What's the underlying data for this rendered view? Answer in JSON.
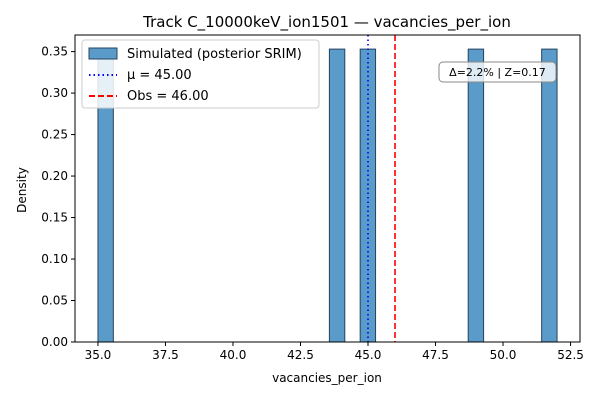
{
  "chart_data": {
    "type": "bar",
    "title": "Track C_10000keV_ion1501 — vacancies_per_ion",
    "xlabel": "vacancies_per_ion",
    "ylabel": "Density",
    "xlim": [
      34.15,
      52.85
    ],
    "ylim": [
      0,
      0.37
    ],
    "bin_width": 0.57,
    "bars": [
      {
        "x0": 35.0,
        "x1": 35.57,
        "value": 0.353
      },
      {
        "x0": 43.57,
        "x1": 44.14,
        "value": 0.353
      },
      {
        "x0": 44.71,
        "x1": 45.28,
        "value": 0.353
      },
      {
        "x0": 48.71,
        "x1": 49.28,
        "value": 0.353
      },
      {
        "x0": 51.43,
        "x1": 52.0,
        "value": 0.353
      }
    ],
    "xticks": [
      {
        "value": 35.0,
        "label": "35.0"
      },
      {
        "value": 37.5,
        "label": "37.5"
      },
      {
        "value": 40.0,
        "label": "40.0"
      },
      {
        "value": 42.5,
        "label": "42.5"
      },
      {
        "value": 45.0,
        "label": "45.0"
      },
      {
        "value": 47.5,
        "label": "47.5"
      },
      {
        "value": 50.0,
        "label": "50.0"
      },
      {
        "value": 52.5,
        "label": "52.5"
      }
    ],
    "yticks": [
      {
        "value": 0.0,
        "label": "0.00"
      },
      {
        "value": 0.05,
        "label": "0.05"
      },
      {
        "value": 0.1,
        "label": "0.10"
      },
      {
        "value": 0.15,
        "label": "0.15"
      },
      {
        "value": 0.2,
        "label": "0.20"
      },
      {
        "value": 0.25,
        "label": "0.25"
      },
      {
        "value": 0.3,
        "label": "0.30"
      },
      {
        "value": 0.35,
        "label": "0.35"
      }
    ],
    "mean_line": {
      "value": 45.0,
      "label": "μ = 45.00",
      "color": "#0000ff"
    },
    "obs_line": {
      "value": 46.0,
      "label": "Obs = 46.00",
      "color": "#ff0000"
    },
    "bar_color": "#5b9bc9",
    "bar_edge_color": "#24445f",
    "legend": {
      "placement": "top-left",
      "series_label": "Simulated (posterior SRIM)"
    },
    "annotation": {
      "text": "Δ=2.2% | Z=0.17"
    },
    "grid": false
  }
}
